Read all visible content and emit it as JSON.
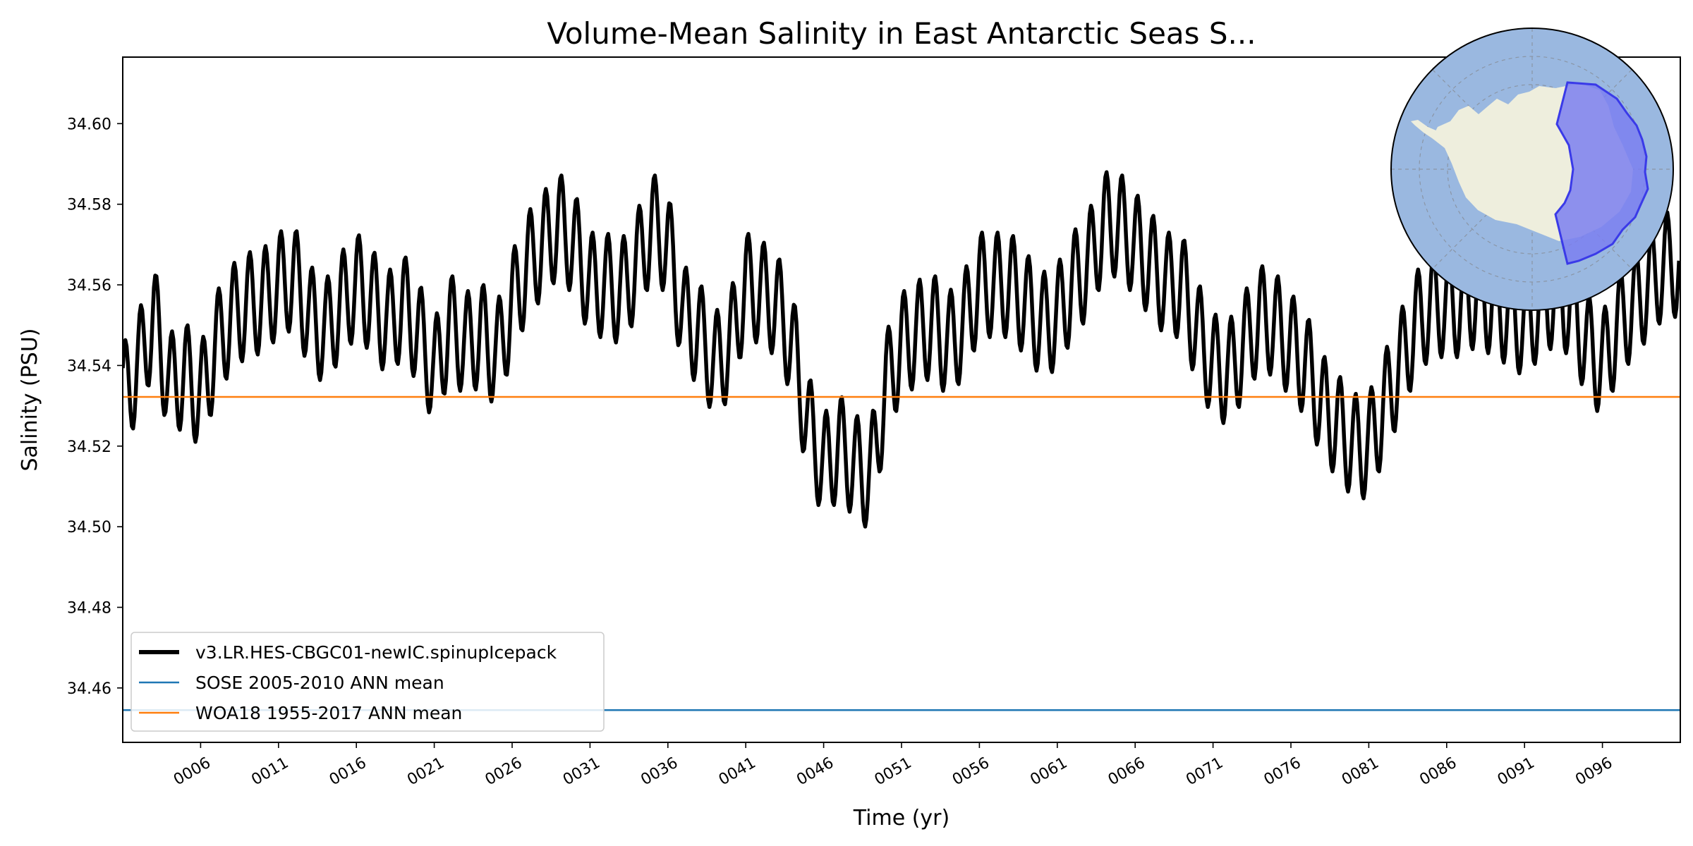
{
  "chart_data": {
    "type": "line",
    "title": "Volume-Mean Salinity in East Antarctic Seas S...",
    "xlabel": "Time (yr)",
    "ylabel": "Salinity (PSU)",
    "xlim": [
      1.0,
      101.0
    ],
    "ylim": [
      34.4465,
      34.6165
    ],
    "xticks": [
      6,
      11,
      16,
      21,
      26,
      31,
      36,
      41,
      46,
      51,
      56,
      61,
      66,
      71,
      76,
      81,
      86,
      91,
      96
    ],
    "xtick_labels": [
      "0006",
      "0011",
      "0016",
      "0021",
      "0026",
      "0031",
      "0036",
      "0041",
      "0046",
      "0051",
      "0056",
      "0061",
      "0066",
      "0071",
      "0076",
      "0081",
      "0086",
      "0091",
      "0096"
    ],
    "yticks": [
      34.46,
      34.48,
      34.5,
      34.52,
      34.54,
      34.56,
      34.58,
      34.6
    ],
    "ytick_labels": [
      "34.46",
      "34.48",
      "34.50",
      "34.52",
      "34.54",
      "34.56",
      "34.58",
      "34.60"
    ],
    "grid": false,
    "legend_position": "lower-left",
    "series": [
      {
        "name": "v3.LR.HES-CBGC01-newIC.spinupIcepack",
        "color": "#000000",
        "annual_means": [
          34.532,
          34.54,
          34.552,
          34.535,
          34.538,
          34.532,
          34.545,
          34.552,
          34.555,
          34.556,
          34.56,
          34.562,
          34.552,
          34.548,
          34.555,
          34.56,
          34.556,
          34.55,
          34.555,
          34.548,
          34.538,
          34.55,
          34.545,
          34.548,
          34.542,
          34.555,
          34.565,
          34.57,
          34.575,
          34.57,
          34.56,
          34.56,
          34.558,
          34.565,
          34.575,
          34.57,
          34.552,
          34.548,
          34.54,
          34.545,
          34.56,
          34.558,
          34.555,
          34.545,
          34.525,
          34.515,
          34.52,
          34.515,
          34.512,
          34.535,
          34.545,
          34.548,
          34.55,
          34.545,
          34.55,
          34.56,
          34.56,
          34.56,
          34.555,
          34.55,
          34.552,
          34.56,
          34.565,
          34.575,
          34.575,
          34.57,
          34.565,
          34.56,
          34.56,
          34.548,
          34.54,
          34.538,
          34.545,
          34.552,
          34.55,
          34.545,
          34.54,
          34.53,
          34.525,
          34.52,
          34.52,
          34.53,
          34.54,
          34.55,
          34.555,
          34.555,
          34.555,
          34.558,
          34.555,
          34.553,
          34.55,
          34.555,
          34.558,
          34.555,
          34.545,
          34.54,
          34.55,
          34.555,
          34.56,
          34.565
        ],
        "seasonal_amplitude": 0.013
      },
      {
        "name": "SOSE 2005-2010 ANN mean",
        "color": "#1f77b4",
        "constant": 34.4545
      },
      {
        "name": "WOA18 1955-2017 ANN mean",
        "color": "#ff7f0e",
        "constant": 34.5322
      }
    ]
  },
  "inset_map": {
    "ocean_color": "#9ab8e0",
    "land_color": "#eeeedd",
    "region_color": "#7b7ff0",
    "region_edge_color": "#3a3ae8"
  }
}
